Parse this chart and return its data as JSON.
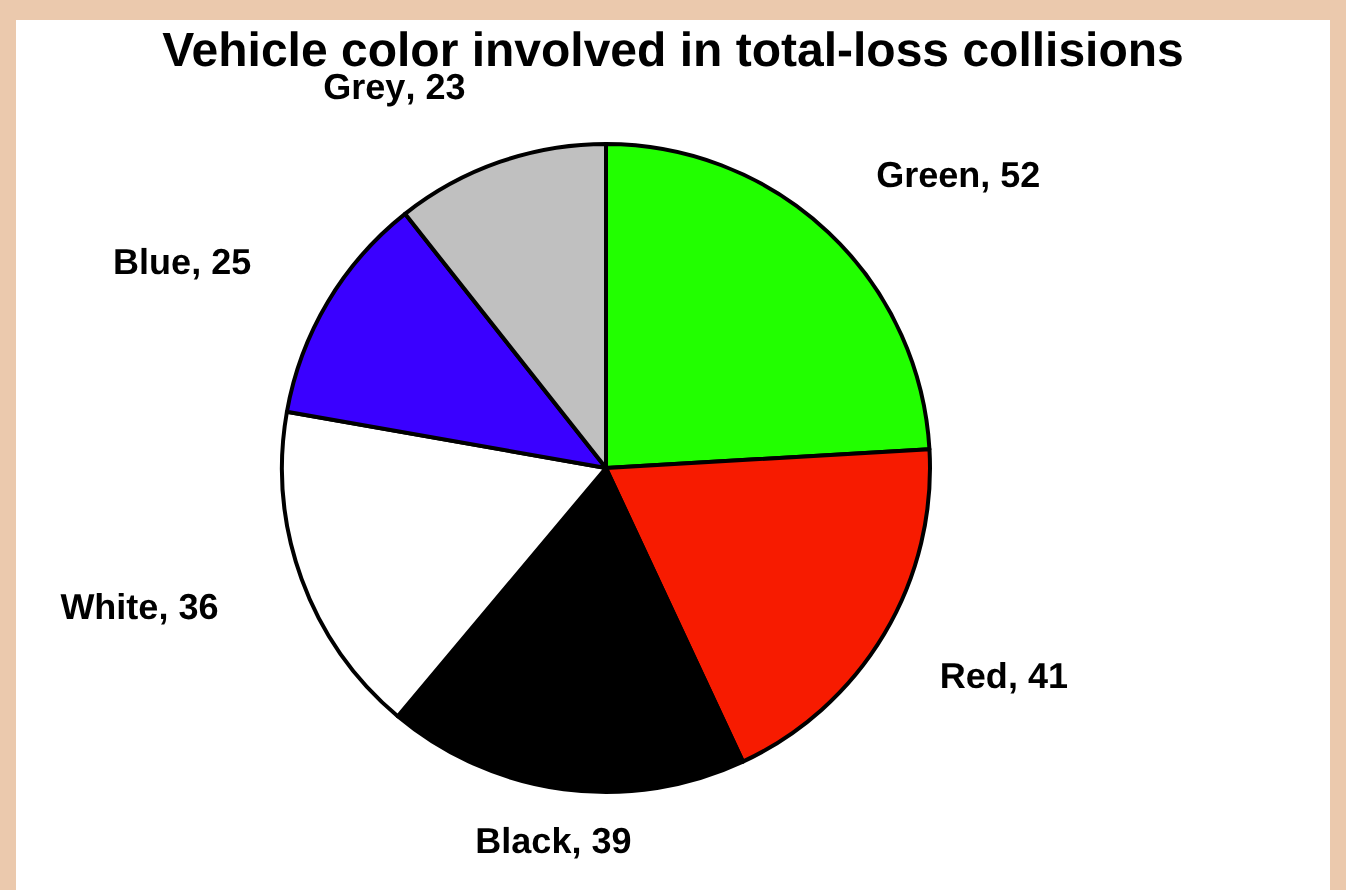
{
  "chart_data": {
    "type": "pie",
    "title": "Vehicle color involved in total-loss collisions",
    "categories": [
      "Green",
      "Red",
      "Black",
      "White",
      "Blue",
      "Grey"
    ],
    "values": [
      52,
      41,
      39,
      36,
      25,
      23
    ],
    "colors": [
      "#22ff00",
      "#f71b00",
      "#000000",
      "#ffffff",
      "#3a00ff",
      "#c0c0c0"
    ],
    "value_labels": [
      ", 52",
      ", 41",
      ", 39",
      ", 36",
      ", 25",
      ", 23"
    ],
    "legend": false
  }
}
